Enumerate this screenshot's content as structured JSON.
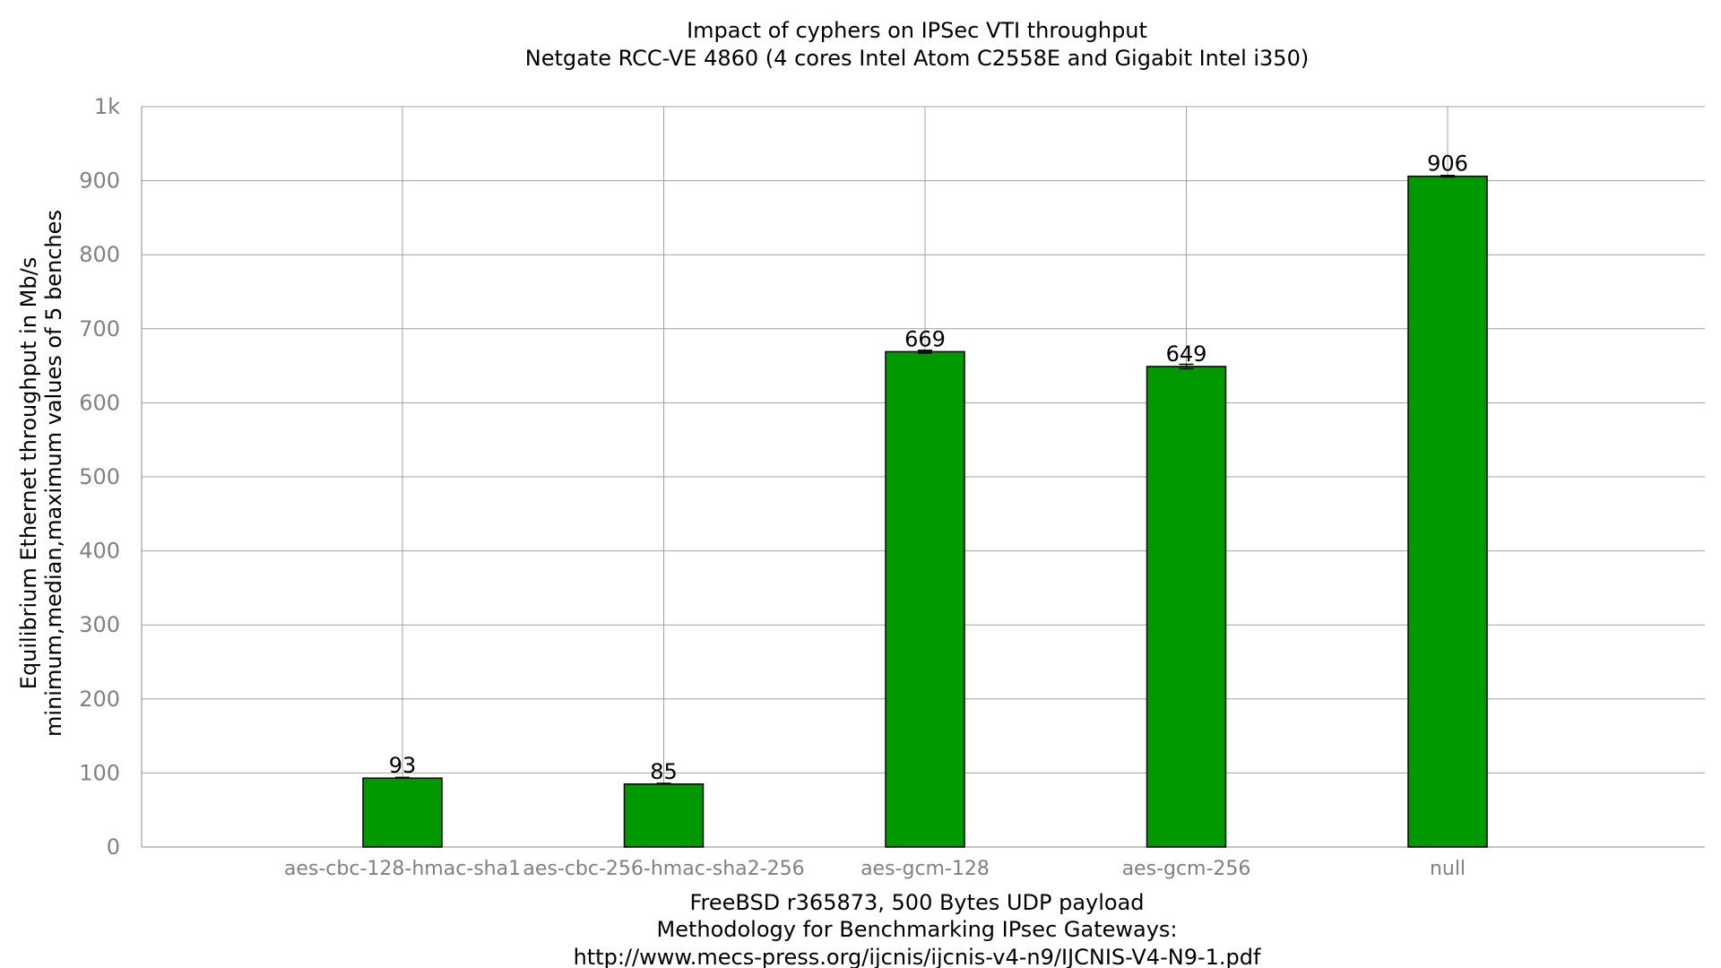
{
  "chart_data": {
    "type": "bar",
    "title": "Impact of cyphers on IPSec VTI throughput",
    "subtitle": "Netgate RCC-VE 4860 (4 cores Intel Atom C2558E and Gigabit Intel i350)",
    "ylabel": "Equilibrium Ethernet throughput in Mb/s",
    "ylabel2": "minimum,median,maximum values of 5 benches",
    "xlabel": "FreeBSD r365873, 500 Bytes UDP payload",
    "xlabel2": "Methodology for Benchmarking IPsec Gateways:",
    "xlabel3": "http://www.mecs-press.org/ijcnis/ijcnis-v4-n9/IJCNIS-V4-N9-1.pdf",
    "categories": [
      "aes-cbc-128-hmac-sha1",
      "aes-cbc-256-hmac-sha2-256",
      "aes-gcm-128",
      "aes-gcm-256",
      "null"
    ],
    "values": [
      93,
      85,
      669,
      649,
      906
    ],
    "value_labels": [
      "93",
      "85",
      "669",
      "649",
      "906"
    ],
    "error_min": [
      93,
      85,
      667,
      646,
      905
    ],
    "error_max": [
      94,
      86,
      671,
      652,
      907
    ],
    "ylim": [
      0,
      1000
    ],
    "yticks": [
      0,
      100,
      200,
      300,
      400,
      500,
      600,
      700,
      800,
      900,
      1000
    ],
    "ytick_labels": [
      "0",
      "100",
      "200",
      "300",
      "400",
      "500",
      "600",
      "700",
      "800",
      "900",
      "1k"
    ],
    "grid": true,
    "colors": {
      "bar": "#009900",
      "bar_stroke": "#000000",
      "grid": "#a0a0a0",
      "tick_text": "#808080"
    }
  }
}
